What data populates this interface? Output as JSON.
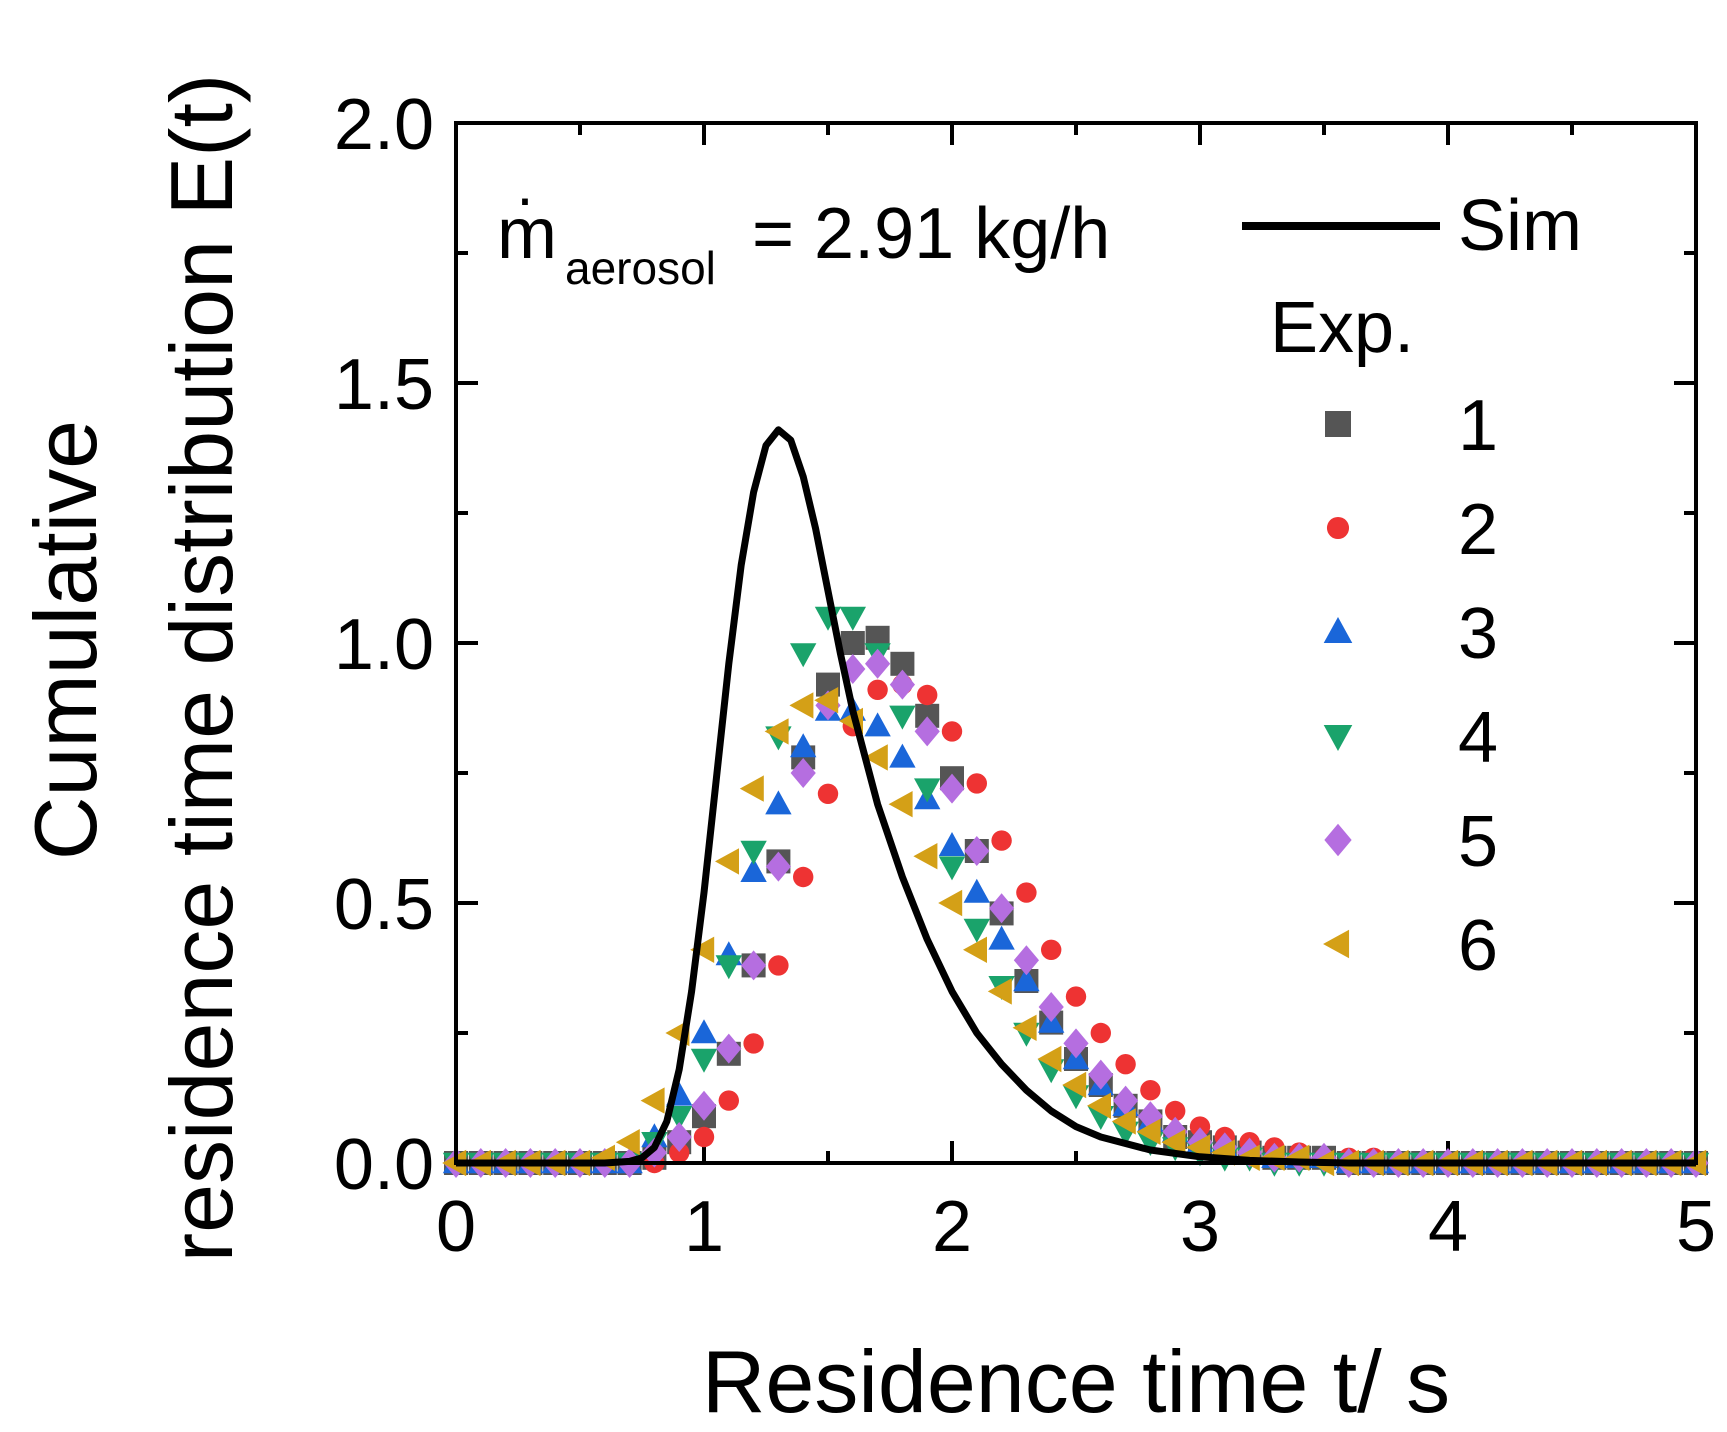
{
  "chart_data": {
    "type": "scatter",
    "title": "",
    "xlabel": "Residence time t/ s",
    "ylabel_line1": "Cumulative",
    "ylabel_line2": "residence time distribution E(t)",
    "xlim": [
      0,
      5
    ],
    "ylim": [
      0,
      2.0
    ],
    "x_ticks": [
      0,
      1,
      2,
      3,
      4,
      5
    ],
    "x_tick_labels": [
      "0",
      "1",
      "2",
      "3",
      "4",
      "5"
    ],
    "y_ticks": [
      0,
      0.5,
      1.0,
      1.5,
      2.0
    ],
    "y_tick_labels": [
      "0.0",
      "0.5",
      "1.0",
      "1.5",
      "2.0"
    ],
    "grid": false,
    "annotation": {
      "symbol": "ṁ",
      "base": "m",
      "subscript": "aerosol",
      "value_text": "= 2.91 kg/h"
    },
    "legend": {
      "position": "top-right",
      "sim_label": "Sim",
      "group_title": "Exp."
    },
    "simulation": {
      "name": "Sim",
      "color": "#000000",
      "x": [
        0.0,
        0.6,
        0.7,
        0.75,
        0.8,
        0.85,
        0.9,
        0.95,
        1.0,
        1.05,
        1.1,
        1.15,
        1.2,
        1.25,
        1.3,
        1.35,
        1.4,
        1.45,
        1.5,
        1.55,
        1.6,
        1.7,
        1.8,
        1.9,
        2.0,
        2.1,
        2.2,
        2.3,
        2.4,
        2.5,
        2.6,
        2.8,
        3.0,
        3.2,
        3.4,
        3.6,
        4.0,
        4.5,
        5.0
      ],
      "y": [
        0.0,
        0.0,
        0.003,
        0.01,
        0.03,
        0.08,
        0.18,
        0.33,
        0.52,
        0.74,
        0.96,
        1.15,
        1.29,
        1.38,
        1.41,
        1.39,
        1.32,
        1.22,
        1.1,
        0.98,
        0.87,
        0.69,
        0.55,
        0.43,
        0.33,
        0.25,
        0.19,
        0.14,
        0.1,
        0.07,
        0.05,
        0.025,
        0.012,
        0.005,
        0.002,
        0.0,
        0.0,
        0.0,
        0.0
      ]
    },
    "series": [
      {
        "name": "1",
        "marker": "square",
        "color": "#555555",
        "x": [
          0.0,
          0.1,
          0.2,
          0.3,
          0.4,
          0.5,
          0.6,
          0.7,
          0.8,
          0.9,
          1.0,
          1.1,
          1.2,
          1.3,
          1.4,
          1.5,
          1.6,
          1.7,
          1.8,
          1.9,
          2.0,
          2.1,
          2.2,
          2.3,
          2.4,
          2.5,
          2.6,
          2.7,
          2.8,
          2.9,
          3.0,
          3.1,
          3.2,
          3.3,
          3.4,
          3.5,
          3.6,
          3.7,
          3.8,
          3.9,
          4.0,
          4.1,
          4.2,
          4.3,
          4.4,
          4.5,
          4.6,
          4.7,
          4.8,
          4.9,
          5.0
        ],
        "y": [
          0.0,
          0.0,
          0.0,
          0.0,
          0.0,
          0.0,
          0.0,
          0.0,
          0.01,
          0.04,
          0.09,
          0.21,
          0.38,
          0.58,
          0.78,
          0.92,
          1.0,
          1.01,
          0.96,
          0.86,
          0.74,
          0.6,
          0.48,
          0.35,
          0.27,
          0.2,
          0.15,
          0.11,
          0.08,
          0.05,
          0.04,
          0.03,
          0.02,
          0.01,
          0.01,
          0.01,
          0.0,
          0.0,
          0.0,
          0.0,
          0.0,
          0.0,
          0.0,
          0.0,
          0.0,
          0.0,
          0.0,
          0.0,
          0.0,
          0.0,
          0.0
        ]
      },
      {
        "name": "2",
        "marker": "circle",
        "color": "#ee3333",
        "x": [
          0.0,
          0.1,
          0.2,
          0.3,
          0.4,
          0.5,
          0.6,
          0.7,
          0.8,
          0.9,
          1.0,
          1.1,
          1.2,
          1.3,
          1.4,
          1.5,
          1.6,
          1.7,
          1.8,
          1.9,
          2.0,
          2.1,
          2.2,
          2.3,
          2.4,
          2.5,
          2.6,
          2.7,
          2.8,
          2.9,
          3.0,
          3.1,
          3.2,
          3.3,
          3.4,
          3.5,
          3.6,
          3.7,
          3.8,
          3.9,
          4.0,
          4.1,
          4.2,
          4.3,
          4.4,
          4.5,
          4.6,
          4.7,
          4.8,
          4.9,
          5.0
        ],
        "y": [
          0.0,
          0.0,
          0.0,
          0.0,
          0.0,
          0.0,
          0.0,
          0.0,
          0.0,
          0.02,
          0.05,
          0.12,
          0.23,
          0.38,
          0.55,
          0.71,
          0.84,
          0.91,
          0.92,
          0.9,
          0.83,
          0.73,
          0.62,
          0.52,
          0.41,
          0.32,
          0.25,
          0.19,
          0.14,
          0.1,
          0.07,
          0.05,
          0.04,
          0.03,
          0.02,
          0.01,
          0.01,
          0.01,
          0.0,
          0.0,
          0.0,
          0.0,
          0.0,
          0.0,
          0.0,
          0.0,
          0.0,
          0.0,
          0.0,
          0.0,
          0.0
        ]
      },
      {
        "name": "3",
        "marker": "triangle-up",
        "color": "#1a66d9",
        "x": [
          0.0,
          0.1,
          0.2,
          0.3,
          0.4,
          0.5,
          0.6,
          0.7,
          0.8,
          0.9,
          1.0,
          1.1,
          1.2,
          1.3,
          1.4,
          1.5,
          1.6,
          1.7,
          1.8,
          1.9,
          2.0,
          2.1,
          2.2,
          2.3,
          2.4,
          2.5,
          2.6,
          2.7,
          2.8,
          2.9,
          3.0,
          3.1,
          3.2,
          3.3,
          3.4,
          3.5,
          3.6,
          3.7,
          3.8,
          3.9,
          4.0,
          4.1,
          4.2,
          4.3,
          4.4,
          4.5,
          4.6,
          4.7,
          4.8,
          4.9,
          5.0
        ],
        "y": [
          0.0,
          0.0,
          0.0,
          0.0,
          0.0,
          0.0,
          0.0,
          0.0,
          0.05,
          0.13,
          0.25,
          0.4,
          0.56,
          0.69,
          0.8,
          0.87,
          0.87,
          0.84,
          0.78,
          0.7,
          0.61,
          0.52,
          0.43,
          0.35,
          0.27,
          0.2,
          0.15,
          0.11,
          0.08,
          0.06,
          0.04,
          0.03,
          0.02,
          0.01,
          0.01,
          0.01,
          0.0,
          0.0,
          0.0,
          0.0,
          0.0,
          0.0,
          0.0,
          0.0,
          0.0,
          0.0,
          0.0,
          0.0,
          0.0,
          0.0,
          0.0
        ]
      },
      {
        "name": "4",
        "marker": "triangle-down",
        "color": "#1aa36b",
        "x": [
          0.0,
          0.1,
          0.2,
          0.3,
          0.4,
          0.5,
          0.6,
          0.7,
          0.8,
          0.9,
          1.0,
          1.1,
          1.2,
          1.3,
          1.4,
          1.5,
          1.6,
          1.7,
          1.8,
          1.9,
          2.0,
          2.1,
          2.2,
          2.3,
          2.4,
          2.5,
          2.6,
          2.7,
          2.8,
          2.9,
          3.0,
          3.1,
          3.2,
          3.3,
          3.4,
          3.5,
          3.6,
          3.7,
          3.8,
          3.9,
          4.0,
          4.1,
          4.2,
          4.3,
          4.4,
          4.5,
          4.6,
          4.7,
          4.8,
          4.9,
          5.0
        ],
        "y": [
          0.0,
          0.0,
          0.0,
          0.0,
          0.0,
          0.0,
          0.0,
          0.0,
          0.04,
          0.09,
          0.2,
          0.38,
          0.6,
          0.82,
          0.98,
          1.05,
          1.05,
          0.98,
          0.86,
          0.72,
          0.57,
          0.45,
          0.34,
          0.25,
          0.18,
          0.13,
          0.09,
          0.06,
          0.04,
          0.03,
          0.02,
          0.01,
          0.01,
          0.0,
          0.0,
          0.0,
          0.0,
          0.0,
          0.0,
          0.0,
          0.0,
          0.0,
          0.0,
          0.0,
          0.0,
          0.0,
          0.0,
          0.0,
          0.0,
          0.0,
          0.0
        ]
      },
      {
        "name": "5",
        "marker": "diamond",
        "color": "#b56ee0",
        "x": [
          0.0,
          0.1,
          0.2,
          0.3,
          0.4,
          0.5,
          0.6,
          0.7,
          0.8,
          0.9,
          1.0,
          1.1,
          1.2,
          1.3,
          1.4,
          1.5,
          1.6,
          1.7,
          1.8,
          1.9,
          2.0,
          2.1,
          2.2,
          2.3,
          2.4,
          2.5,
          2.6,
          2.7,
          2.8,
          2.9,
          3.0,
          3.1,
          3.2,
          3.3,
          3.4,
          3.5,
          3.6,
          3.7,
          3.8,
          3.9,
          4.0,
          4.1,
          4.2,
          4.3,
          4.4,
          4.5,
          4.6,
          4.7,
          4.8,
          4.9,
          5.0
        ],
        "y": [
          0.0,
          0.0,
          0.0,
          0.0,
          0.0,
          0.0,
          0.0,
          0.0,
          0.02,
          0.05,
          0.11,
          0.22,
          0.38,
          0.57,
          0.75,
          0.88,
          0.95,
          0.96,
          0.92,
          0.83,
          0.72,
          0.6,
          0.49,
          0.39,
          0.3,
          0.23,
          0.17,
          0.12,
          0.09,
          0.06,
          0.04,
          0.03,
          0.02,
          0.01,
          0.01,
          0.01,
          0.0,
          0.0,
          0.0,
          0.0,
          0.0,
          0.0,
          0.0,
          0.0,
          0.0,
          0.0,
          0.0,
          0.0,
          0.0,
          0.0,
          0.0
        ]
      },
      {
        "name": "6",
        "marker": "triangle-left",
        "color": "#d4a017",
        "x": [
          0.0,
          0.1,
          0.2,
          0.3,
          0.4,
          0.5,
          0.6,
          0.7,
          0.8,
          0.9,
          1.0,
          1.1,
          1.2,
          1.3,
          1.4,
          1.5,
          1.6,
          1.7,
          1.8,
          1.9,
          2.0,
          2.1,
          2.2,
          2.3,
          2.4,
          2.5,
          2.6,
          2.7,
          2.8,
          2.9,
          3.0,
          3.1,
          3.2,
          3.3,
          3.4,
          3.5,
          3.6,
          3.7,
          3.8,
          3.9,
          4.0,
          4.1,
          4.2,
          4.3,
          4.4,
          4.5,
          4.6,
          4.7,
          4.8,
          4.9,
          5.0
        ],
        "y": [
          0.0,
          0.0,
          0.0,
          0.0,
          0.0,
          0.0,
          0.01,
          0.04,
          0.12,
          0.25,
          0.41,
          0.58,
          0.72,
          0.83,
          0.88,
          0.89,
          0.85,
          0.78,
          0.69,
          0.59,
          0.5,
          0.41,
          0.33,
          0.26,
          0.2,
          0.15,
          0.11,
          0.08,
          0.06,
          0.04,
          0.03,
          0.02,
          0.01,
          0.01,
          0.01,
          0.0,
          0.0,
          0.0,
          0.0,
          0.0,
          0.0,
          0.0,
          0.0,
          0.0,
          0.0,
          0.0,
          0.0,
          0.0,
          0.0,
          0.0,
          0.0
        ]
      }
    ]
  }
}
